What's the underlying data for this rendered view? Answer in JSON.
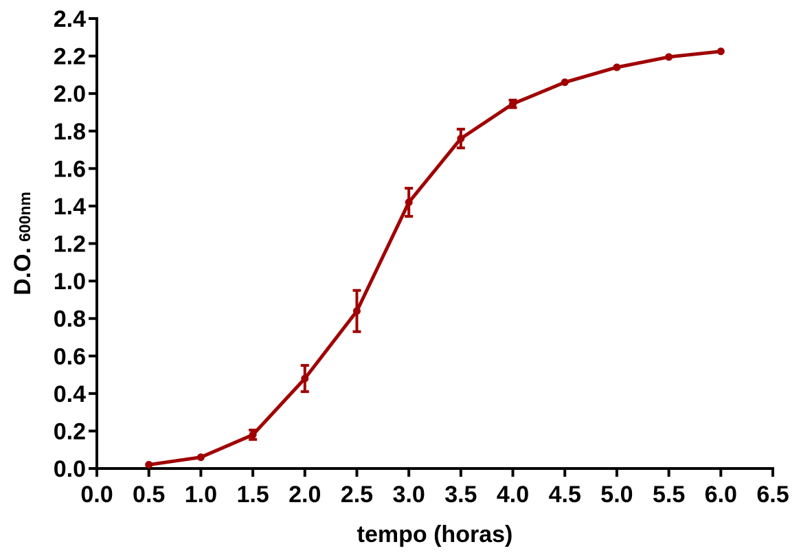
{
  "colors": {
    "series": "#a00000",
    "axis": "#000000",
    "background": "#ffffff"
  },
  "chart_data": {
    "type": "line",
    "title": "",
    "xlabel": "tempo (horas)",
    "ylabel_main": "D.O.",
    "ylabel_sub": "600nm",
    "xlim": [
      0,
      6.5
    ],
    "ylim": [
      0,
      2.4
    ],
    "x_ticks": [
      "0.0",
      "0.5",
      "1.0",
      "1.5",
      "2.0",
      "2.5",
      "3.0",
      "3.5",
      "4.0",
      "4.5",
      "5.0",
      "5.5",
      "6.0",
      "6.5"
    ],
    "y_ticks": [
      "0.0",
      "0.2",
      "0.4",
      "0.6",
      "0.8",
      "1.0",
      "1.2",
      "1.4",
      "1.6",
      "1.8",
      "2.0",
      "2.2",
      "2.4"
    ],
    "grid": false,
    "legend": "none",
    "series": [
      {
        "x": [
          0.5,
          1.0,
          1.5,
          2.0,
          2.5,
          3.0,
          3.5,
          4.0,
          4.5,
          5.0,
          5.5,
          6.0
        ],
        "y": [
          0.02,
          0.06,
          0.18,
          0.48,
          0.84,
          1.42,
          1.76,
          1.945,
          2.06,
          2.14,
          2.195,
          2.225
        ],
        "error": [
          0,
          0,
          0.025,
          0.07,
          0.11,
          0.075,
          0.05,
          0.02,
          0,
          0,
          0,
          0
        ]
      }
    ]
  }
}
